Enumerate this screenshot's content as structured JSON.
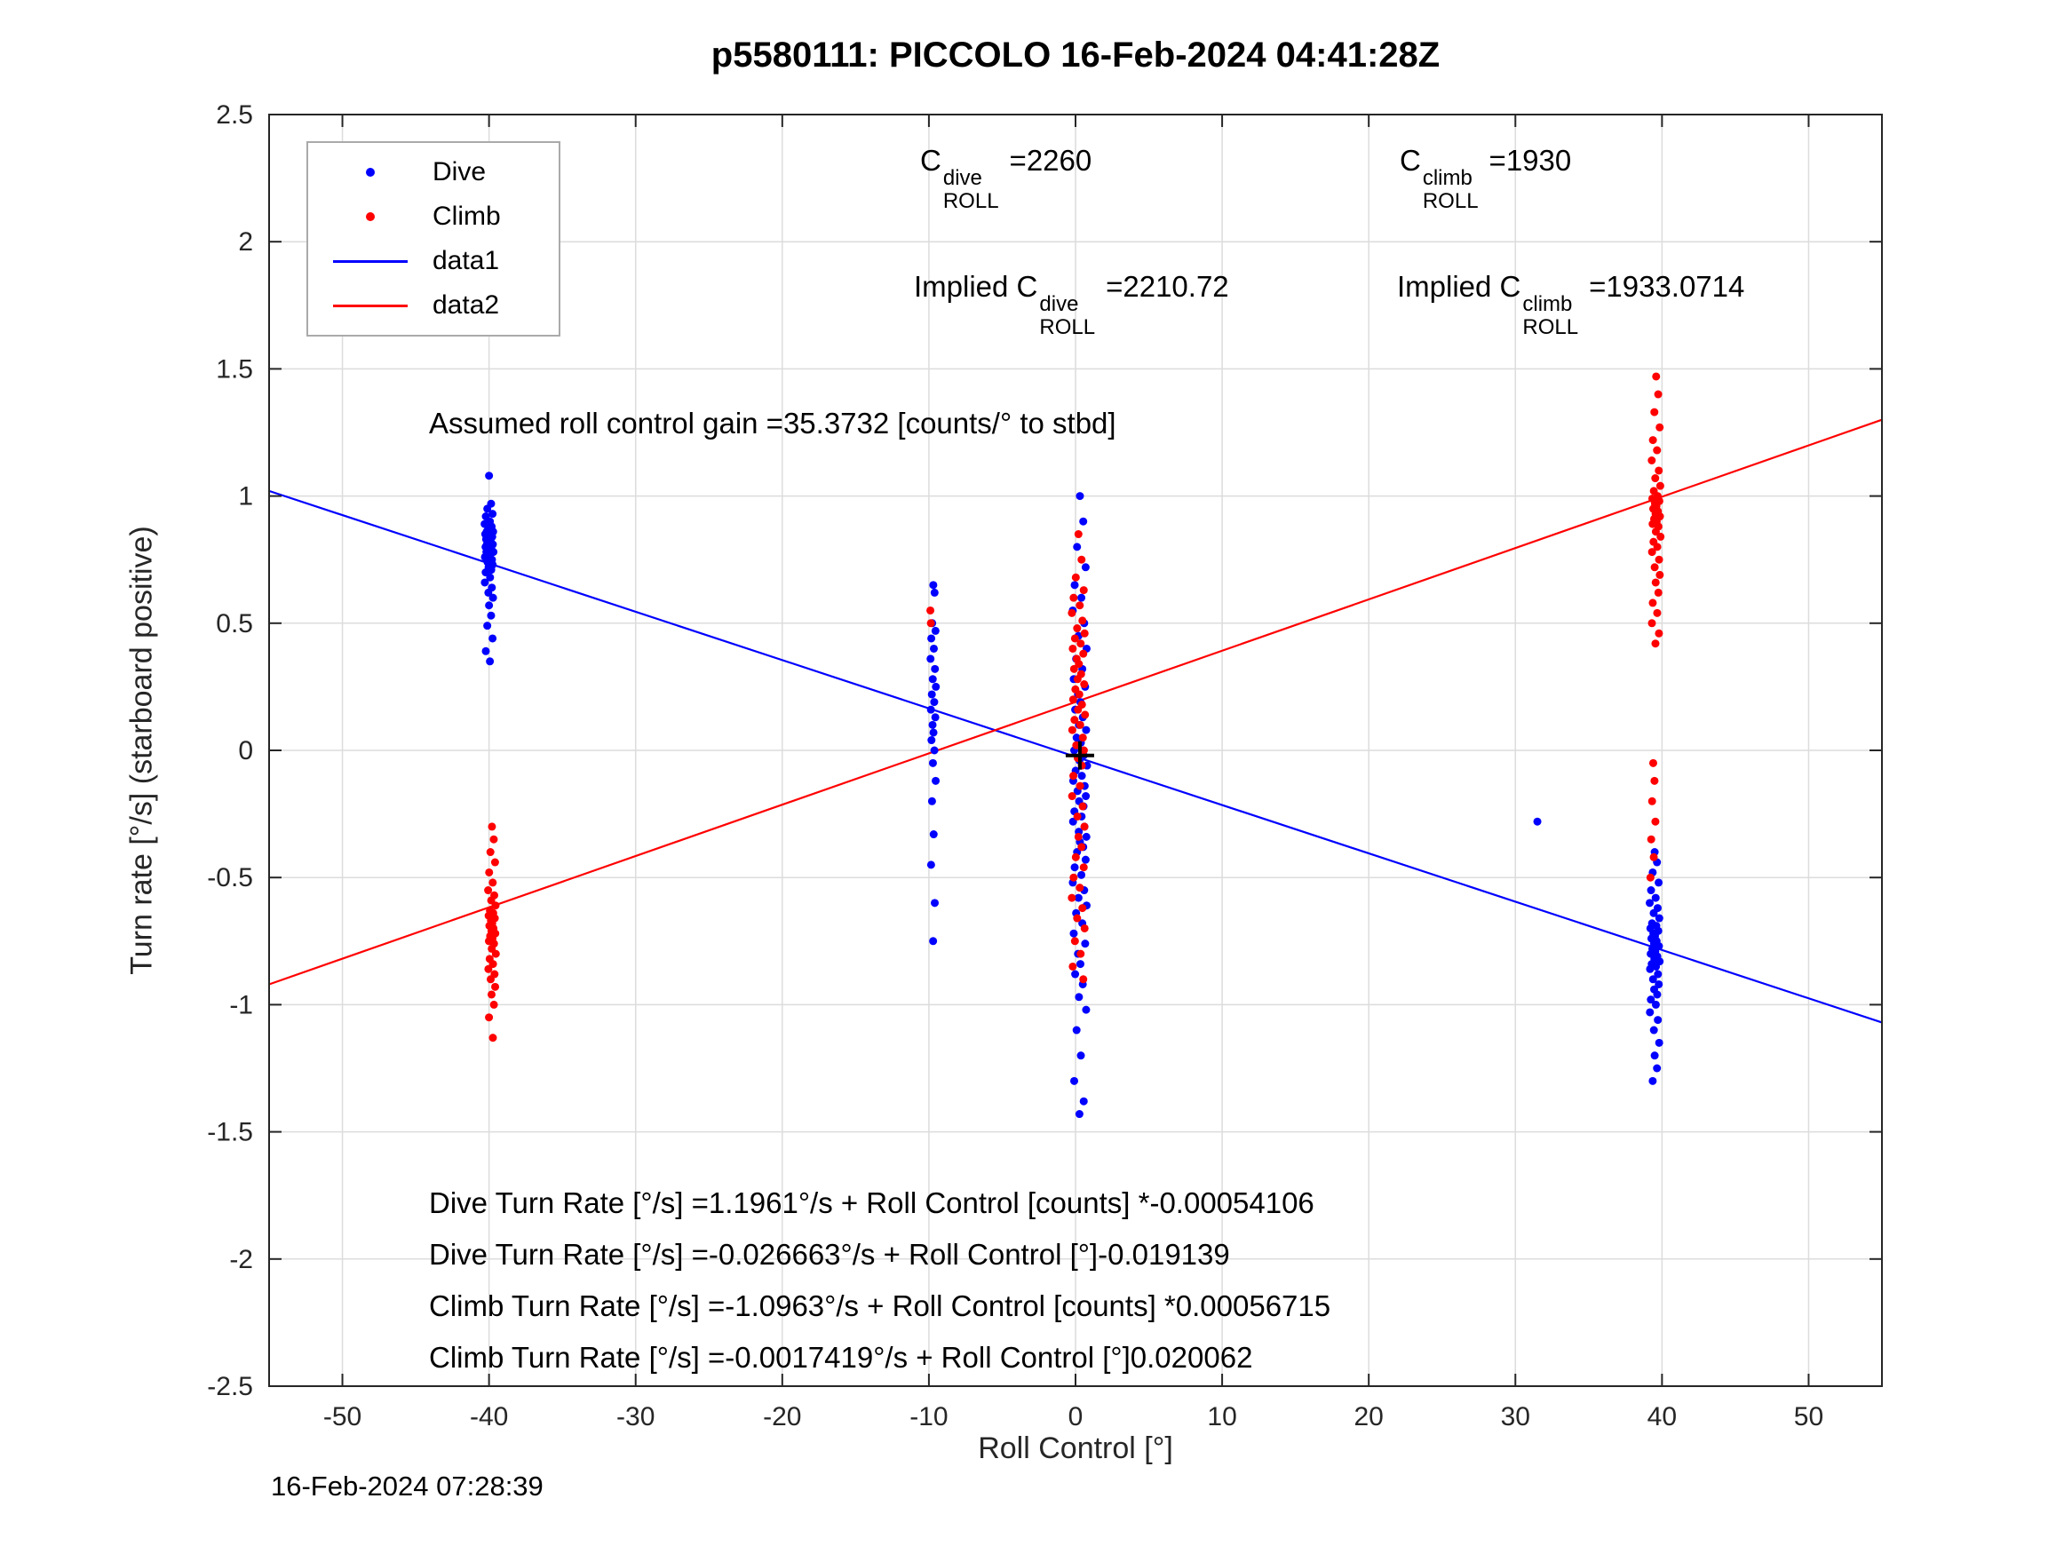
{
  "figure": {
    "timestamp": "16-Feb-2024 07:28:39"
  },
  "chart_data": {
    "type": "scatter",
    "title": "p5580111: PICCOLO 16-Feb-2024 04:41:28Z",
    "xlabel": "Roll Control [°]",
    "ylabel": "Turn rate [°/s] (starboard positive)",
    "xlim": [
      -55,
      55
    ],
    "ylim": [
      -2.5,
      2.5
    ],
    "xticks": [
      -50,
      -40,
      -30,
      -20,
      -10,
      0,
      10,
      20,
      30,
      40,
      50
    ],
    "yticks": [
      -2.5,
      -2,
      -1.5,
      -1,
      -0.5,
      0,
      0.5,
      1,
      1.5,
      2,
      2.5
    ],
    "grid": true,
    "legend": {
      "position": "top-left",
      "items": [
        {
          "label": "Dive",
          "type": "dot",
          "color": "#0000ff"
        },
        {
          "label": "Climb",
          "type": "dot",
          "color": "#ff0000"
        },
        {
          "label": "data1",
          "type": "line",
          "color": "#0000ff"
        },
        {
          "label": "data2",
          "type": "line",
          "color": "#ff0000"
        }
      ]
    },
    "series": [
      {
        "name": "Dive",
        "color": "#0000ff",
        "clusters": [
          {
            "x": -40,
            "jitter": 0.4,
            "ys": [
              1.08,
              0.97,
              0.95,
              0.93,
              0.92,
              0.9,
              0.89,
              0.88,
              0.87,
              0.86,
              0.86,
              0.85,
              0.85,
              0.84,
              0.84,
              0.83,
              0.83,
              0.82,
              0.82,
              0.81,
              0.81,
              0.8,
              0.8,
              0.79,
              0.79,
              0.78,
              0.78,
              0.77,
              0.76,
              0.75,
              0.74,
              0.73,
              0.72,
              0.71,
              0.7,
              0.68,
              0.66,
              0.64,
              0.62,
              0.6,
              0.57,
              0.53,
              0.49,
              0.44,
              0.39,
              0.35
            ]
          },
          {
            "x": -9.7,
            "jitter": 0.25,
            "ys": [
              0.65,
              0.62,
              0.5,
              0.47,
              0.44,
              0.4,
              0.36,
              0.32,
              0.28,
              0.25,
              0.22,
              0.19,
              0.16,
              0.13,
              0.1,
              0.07,
              0.04,
              0.0,
              -0.05,
              -0.12,
              -0.2,
              -0.33,
              -0.45,
              -0.6,
              -0.75
            ]
          },
          {
            "x": 0.3,
            "jitter": 0.65,
            "ys": [
              1.0,
              0.9,
              0.8,
              0.72,
              0.65,
              0.6,
              0.55,
              0.5,
              0.45,
              0.4,
              0.36,
              0.32,
              0.28,
              0.25,
              0.22,
              0.19,
              0.16,
              0.13,
              0.1,
              0.08,
              0.05,
              0.03,
              0.0,
              -0.02,
              -0.04,
              -0.06,
              -0.08,
              -0.1,
              -0.12,
              -0.14,
              -0.16,
              -0.18,
              -0.2,
              -0.22,
              -0.24,
              -0.26,
              -0.28,
              -0.3,
              -0.32,
              -0.34,
              -0.36,
              -0.38,
              -0.4,
              -0.43,
              -0.46,
              -0.49,
              -0.52,
              -0.55,
              -0.58,
              -0.61,
              -0.64,
              -0.68,
              -0.72,
              -0.76,
              -0.8,
              -0.84,
              -0.88,
              -0.92,
              -0.97,
              -1.02,
              -1.1,
              -1.2,
              -1.3,
              -1.38,
              -1.43
            ]
          },
          {
            "x": 31.5,
            "jitter": 0,
            "ys": [
              -0.28
            ]
          },
          {
            "x": 39.5,
            "jitter": 0.45,
            "ys": [
              -0.4,
              -0.44,
              -0.48,
              -0.52,
              -0.55,
              -0.58,
              -0.6,
              -0.62,
              -0.64,
              -0.66,
              -0.68,
              -0.69,
              -0.7,
              -0.71,
              -0.72,
              -0.73,
              -0.74,
              -0.75,
              -0.76,
              -0.77,
              -0.78,
              -0.79,
              -0.8,
              -0.81,
              -0.82,
              -0.83,
              -0.84,
              -0.85,
              -0.86,
              -0.88,
              -0.9,
              -0.92,
              -0.94,
              -0.96,
              -0.98,
              -1.0,
              -1.03,
              -1.06,
              -1.1,
              -1.15,
              -1.2,
              -1.25,
              -1.3
            ]
          }
        ]
      },
      {
        "name": "Climb",
        "color": "#ff0000",
        "clusters": [
          {
            "x": -39.8,
            "jitter": 0.35,
            "ys": [
              -0.3,
              -0.35,
              -0.4,
              -0.44,
              -0.48,
              -0.52,
              -0.55,
              -0.57,
              -0.59,
              -0.61,
              -0.63,
              -0.64,
              -0.65,
              -0.66,
              -0.67,
              -0.68,
              -0.69,
              -0.7,
              -0.71,
              -0.72,
              -0.73,
              -0.74,
              -0.75,
              -0.76,
              -0.78,
              -0.8,
              -0.82,
              -0.84,
              -0.86,
              -0.88,
              -0.9,
              -0.93,
              -0.96,
              -1.0,
              -1.05,
              -1.13
            ]
          },
          {
            "x": -9.9,
            "jitter": 0.1,
            "ys": [
              0.55,
              0.5
            ]
          },
          {
            "x": 0.2,
            "jitter": 0.6,
            "ys": [
              0.85,
              0.75,
              0.68,
              0.63,
              0.6,
              0.57,
              0.54,
              0.51,
              0.48,
              0.46,
              0.44,
              0.42,
              0.4,
              0.38,
              0.36,
              0.34,
              0.32,
              0.3,
              0.28,
              0.26,
              0.24,
              0.22,
              0.2,
              0.18,
              0.16,
              0.14,
              0.12,
              0.1,
              0.08,
              0.05,
              0.02,
              0.0,
              -0.03,
              -0.06,
              -0.1,
              -0.14,
              -0.18,
              -0.22,
              -0.26,
              -0.3,
              -0.34,
              -0.38,
              -0.42,
              -0.46,
              -0.5,
              -0.54,
              -0.58,
              -0.62,
              -0.66,
              -0.7,
              -0.75,
              -0.8,
              -0.85,
              -0.9
            ]
          },
          {
            "x": 39.6,
            "jitter": 0.4,
            "ys": [
              1.47,
              1.4,
              1.33,
              1.27,
              1.22,
              1.18,
              1.14,
              1.1,
              1.07,
              1.04,
              1.02,
              1.0,
              0.99,
              0.98,
              0.97,
              0.96,
              0.95,
              0.94,
              0.93,
              0.92,
              0.91,
              0.9,
              0.89,
              0.88,
              0.86,
              0.84,
              0.82,
              0.8,
              0.78,
              0.75,
              0.72,
              0.69,
              0.66,
              0.62,
              0.58,
              0.54,
              0.5,
              0.46,
              0.42
            ]
          },
          {
            "x": 39.4,
            "jitter": 0.25,
            "ys": [
              -0.05,
              -0.12,
              -0.2,
              -0.28,
              -0.35,
              -0.42,
              -0.5
            ]
          }
        ]
      }
    ],
    "fit_lines": [
      {
        "name": "data1",
        "color": "#0000ff",
        "x1": -55,
        "y1": 1.02,
        "x2": 55,
        "y2": -1.07
      },
      {
        "name": "data2",
        "color": "#ff0000",
        "x1": -55,
        "y1": -0.92,
        "x2": 55,
        "y2": 1.3
      }
    ],
    "origin_marker": {
      "x": 0.3,
      "y": -0.02,
      "symbol": "+",
      "color": "#000000"
    },
    "annotations": {
      "gain_text": "Assumed roll control gain =35.3732 [counts/° to stbd]",
      "c_dive": {
        "prefix": "C",
        "sup": "dive",
        "sub": "ROLL",
        "value": "=2260"
      },
      "c_climb": {
        "prefix": "C",
        "sup": "climb",
        "sub": "ROLL",
        "value": "=1930"
      },
      "implied_dive": {
        "prefix": "Implied C",
        "sup": "dive",
        "sub": "ROLL",
        "value": "=2210.72"
      },
      "implied_climb": {
        "prefix": "Implied C",
        "sup": "climb",
        "sub": "ROLL",
        "value": "=1933.0714"
      },
      "fit_equations": [
        "Dive Turn Rate [°/s] =1.1961°/s + Roll Control [counts] *-0.00054106",
        "Dive Turn Rate [°/s] =-0.026663°/s + Roll Control [°]-0.019139",
        "Climb Turn Rate [°/s] =-1.0963°/s + Roll Control [counts] *0.00056715",
        "Climb Turn Rate [°/s] =-0.0017419°/s + Roll Control [°]0.020062"
      ]
    }
  }
}
